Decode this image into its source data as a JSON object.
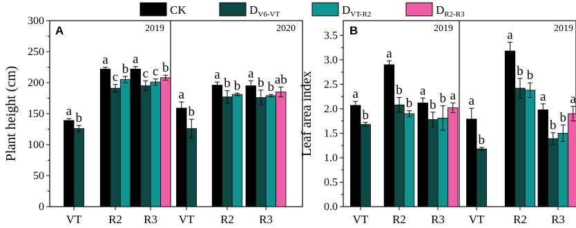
{
  "legend": {
    "items": [
      {
        "label": "CK",
        "sub": "",
        "color": "#000000"
      },
      {
        "label": "D",
        "sub": "V6-VT",
        "color": "#0d4a45"
      },
      {
        "label": "D",
        "sub": "VT-R2",
        "color": "#0f9490"
      },
      {
        "label": "D",
        "sub": "R2-R3",
        "color": "#ef5fa7"
      }
    ]
  },
  "chart_data": [
    {
      "type": "bar",
      "panel": "A",
      "ylabel": "Plant height (cm)",
      "ylim": [
        0,
        300
      ],
      "yticks": [
        "0",
        "50",
        "100",
        "150",
        "200",
        "250",
        "300"
      ],
      "series_names": [
        "CK",
        "DV6-VT",
        "DVT-R2",
        "DR2-R3"
      ],
      "groups": [
        {
          "year": "2019",
          "categories": [
            "VT",
            "R2",
            "R3"
          ],
          "values": [
            [
              139,
              126,
              null,
              null
            ],
            [
              222,
              191,
              205,
              null
            ],
            [
              222,
              195,
              201,
              208
            ]
          ],
          "errors": [
            [
              3,
              5,
              null,
              null
            ],
            [
              3,
              6,
              5,
              null
            ],
            [
              4,
              8,
              5,
              4
            ]
          ],
          "letters": [
            [
              "a",
              "b",
              "",
              ""
            ],
            [
              "a",
              "c",
              "b",
              ""
            ],
            [
              "a",
              "c",
              "c",
              "b"
            ]
          ]
        },
        {
          "year": "2020",
          "categories": [
            "VT",
            "R2",
            "R3"
          ],
          "values": [
            [
              159,
              126,
              null,
              null
            ],
            [
              196,
              177,
              181,
              null
            ],
            [
              195,
              176,
              179,
              185
            ]
          ],
          "errors": [
            [
              10,
              15,
              null,
              null
            ],
            [
              5,
              10,
              2,
              null
            ],
            [
              8,
              12,
              2,
              8
            ]
          ],
          "letters": [
            [
              "a",
              "b",
              "",
              ""
            ],
            [
              "a",
              "b",
              "b",
              ""
            ],
            [
              "a",
              "b",
              "b",
              "ab"
            ]
          ]
        }
      ]
    },
    {
      "type": "bar",
      "panel": "B",
      "ylabel": "Leaf area index",
      "ylim": [
        0,
        3.8
      ],
      "yticks": [
        "0.0",
        "0.5",
        "1.0",
        "1.5",
        "2.0",
        "2.5",
        "3.0",
        "3.5"
      ],
      "series_names": [
        "CK",
        "DV6-VT",
        "DVT-R2",
        "DR2-R3"
      ],
      "groups": [
        {
          "year": "2019",
          "categories": [
            "VT",
            "R2",
            "R3"
          ],
          "values": [
            [
              2.07,
              1.68,
              null,
              null
            ],
            [
              2.9,
              2.08,
              1.9,
              null
            ],
            [
              2.12,
              1.78,
              1.81,
              2.02
            ]
          ],
          "errors": [
            [
              0.08,
              0.04,
              null,
              null
            ],
            [
              0.08,
              0.15,
              0.06,
              null
            ],
            [
              0.1,
              0.15,
              0.25,
              0.1
            ]
          ],
          "letters": [
            [
              "a",
              "b",
              "",
              ""
            ],
            [
              "a",
              "b",
              "b",
              ""
            ],
            [
              "a",
              "b",
              "b",
              "a"
            ]
          ]
        },
        {
          "year": "2019",
          "categories": [
            "VT",
            "R2",
            "R3"
          ],
          "values": [
            [
              1.79,
              1.18,
              null,
              null
            ],
            [
              3.18,
              2.42,
              2.38,
              null
            ],
            [
              1.98,
              1.39,
              1.5,
              1.9
            ]
          ],
          "errors": [
            [
              0.22,
              0.03,
              null,
              null
            ],
            [
              0.18,
              0.2,
              0.15,
              null
            ],
            [
              0.12,
              0.12,
              0.17,
              0.15
            ]
          ],
          "letters": [
            [
              "a",
              "b",
              "",
              ""
            ],
            [
              "a",
              "b",
              "b",
              ""
            ],
            [
              "a",
              "b",
              "b",
              "a"
            ]
          ]
        }
      ]
    }
  ]
}
